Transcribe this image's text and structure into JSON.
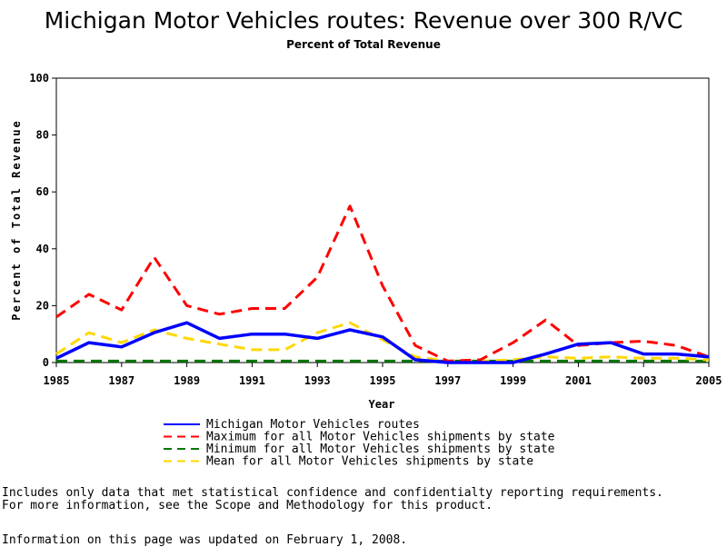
{
  "chart_data": {
    "type": "line",
    "title": "Michigan Motor Vehicles routes: Revenue over 300 R/VC",
    "subtitle": "Percent of Total Revenue",
    "xlabel": "Year",
    "ylabel": "Percent of Total Revenue",
    "xlim": [
      1985,
      2005
    ],
    "ylim": [
      0,
      100
    ],
    "x_ticks": [
      "1985",
      "1987",
      "1989",
      "1991",
      "1993",
      "1995",
      "1997",
      "1999",
      "2001",
      "2003",
      "2005"
    ],
    "y_ticks": [
      "0",
      "20",
      "40",
      "60",
      "80",
      "100"
    ],
    "x": [
      1985,
      1986,
      1987,
      1988,
      1989,
      1990,
      1991,
      1992,
      1993,
      1994,
      1995,
      1996,
      1997,
      1998,
      1999,
      2000,
      2001,
      2002,
      2003,
      2004,
      2005
    ],
    "series": [
      {
        "name": "Michigan Motor Vehicles routes",
        "color": "#0000ff",
        "dash": "solid",
        "values": [
          1.5,
          7,
          5.5,
          10.5,
          14,
          8.5,
          10,
          10,
          8.5,
          11.5,
          9,
          1,
          0,
          0,
          0,
          3,
          6.5,
          7,
          3,
          3,
          2
        ]
      },
      {
        "name": "Maximum for all Motor Vehicles shipments by state",
        "color": "#ff0000",
        "dash": "dashed",
        "values": [
          16,
          24,
          18.5,
          37,
          20,
          17,
          19,
          19,
          30,
          55,
          27,
          6,
          0.5,
          1,
          7,
          15,
          6,
          7,
          7.5,
          6,
          2
        ]
      },
      {
        "name": "Minimum for all Motor Vehicles shipments by state",
        "color": "#007700",
        "dash": "dashed",
        "values": [
          0.5,
          0.5,
          0.5,
          0.5,
          0.5,
          0.5,
          0.5,
          0.5,
          0.5,
          0.5,
          0.5,
          0.5,
          0.5,
          0.5,
          0.5,
          0.5,
          0.5,
          0.5,
          0.5,
          0.5,
          0.5
        ]
      },
      {
        "name": "Mean for all Motor Vehicles shipments by state",
        "color": "#ffd700",
        "dash": "dashed",
        "values": [
          3,
          10.5,
          7,
          11.5,
          8.5,
          6.5,
          4.5,
          4.5,
          10.5,
          14,
          8,
          2,
          0.5,
          0.5,
          1,
          2,
          1.5,
          2,
          1.5,
          1.5,
          1
        ]
      }
    ]
  },
  "footnotes": {
    "line1": "Includes only data that met statistical confidence and confidentialty reporting requirements.",
    "line2": "For more information, see the Scope and Methodology for this product.",
    "updated": "Information on this page was updated on February 1, 2008."
  }
}
